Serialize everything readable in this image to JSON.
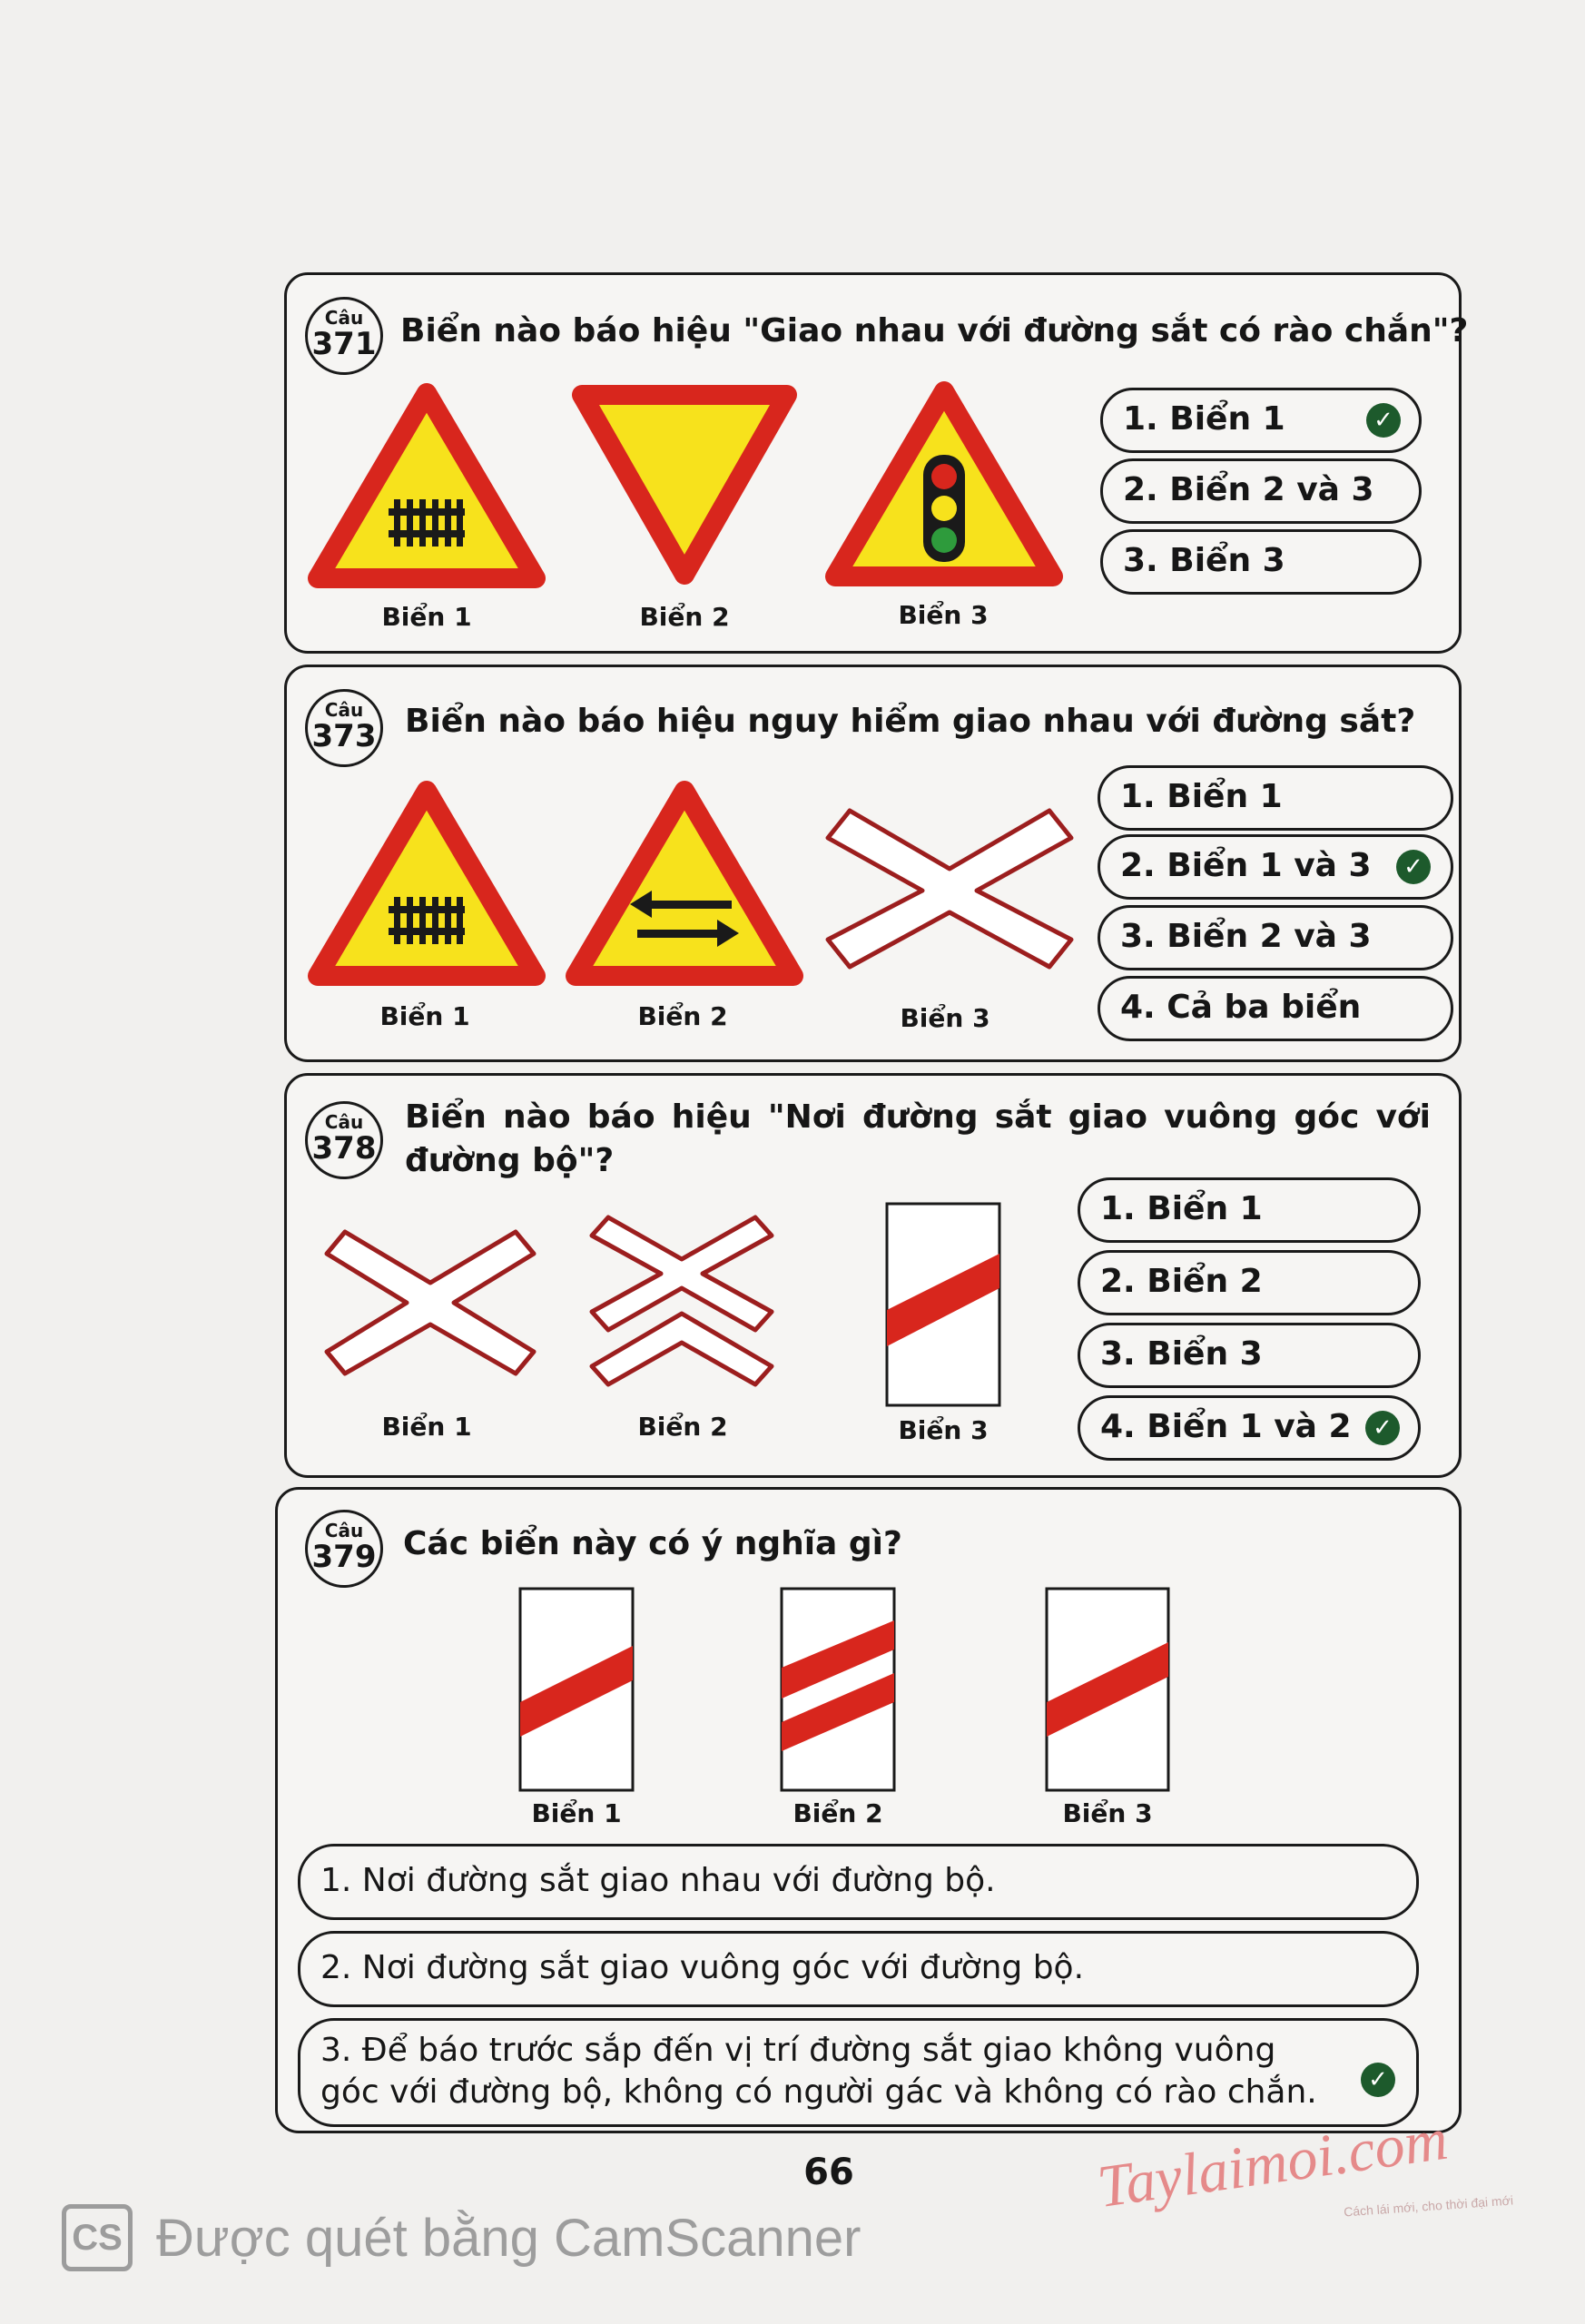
{
  "page_number": "66",
  "badge_prefix": "Câu",
  "questions": [
    {
      "number": "371",
      "text": "Biển nào báo hiệu \"Giao nhau với đường sắt có rào chắn\"?",
      "signs": [
        "Biển 1",
        "Biển 2",
        "Biển 3"
      ],
      "options": [
        "1.  Biển 1",
        "2.  Biển 2 và 3",
        "3.  Biển 3"
      ],
      "correct_option": 1
    },
    {
      "number": "373",
      "text": "Biển nào báo hiệu nguy hiểm giao nhau với đường sắt?",
      "signs": [
        "Biển 1",
        "Biển 2",
        "Biển 3"
      ],
      "options": [
        "1. Biển 1",
        "2. Biển 1 và 3",
        "3. Biển 2 và 3",
        "4. Cả ba biển"
      ],
      "correct_option": 2
    },
    {
      "number": "378",
      "text": "Biển nào báo hiệu \"Nơi đường sắt giao vuông góc với đường bộ\"?",
      "signs": [
        "Biển 1",
        "Biển 2",
        "Biển 3"
      ],
      "options": [
        "1. Biển 1",
        "2. Biển 2",
        "3. Biển 3",
        "4. Biển 1 và 2"
      ],
      "correct_option": 4
    },
    {
      "number": "379",
      "text": "Các biển này có ý nghĩa gì?",
      "signs": [
        "Biển 1",
        "Biển 2",
        "Biển 3"
      ],
      "options": [
        "1. Nơi đường sắt giao nhau với đường bộ.",
        "2. Nơi đường sắt giao vuông góc với đường bộ.",
        "3. Để báo trước sắp đến vị trí đường sắt giao không vuông góc với đường bộ, không có người gác và không có rào chắn."
      ],
      "correct_option": 3
    }
  ],
  "scanner": {
    "logo": "CS",
    "text": "Được quét bằng CamScanner"
  },
  "watermark": {
    "text": "Taylaimoi.com",
    "subtext": "Cách lái mới, cho thời đại mới"
  },
  "colors": {
    "sign_red": "#d8261d",
    "sign_yellow": "#f7e21c",
    "sign_outline": "#9c1e1e",
    "check_green": "#1d5a2c"
  },
  "icons": [
    "check-icon",
    "railway-track-symbol",
    "traffic-light-symbol",
    "two-way-arrows-symbol"
  ]
}
